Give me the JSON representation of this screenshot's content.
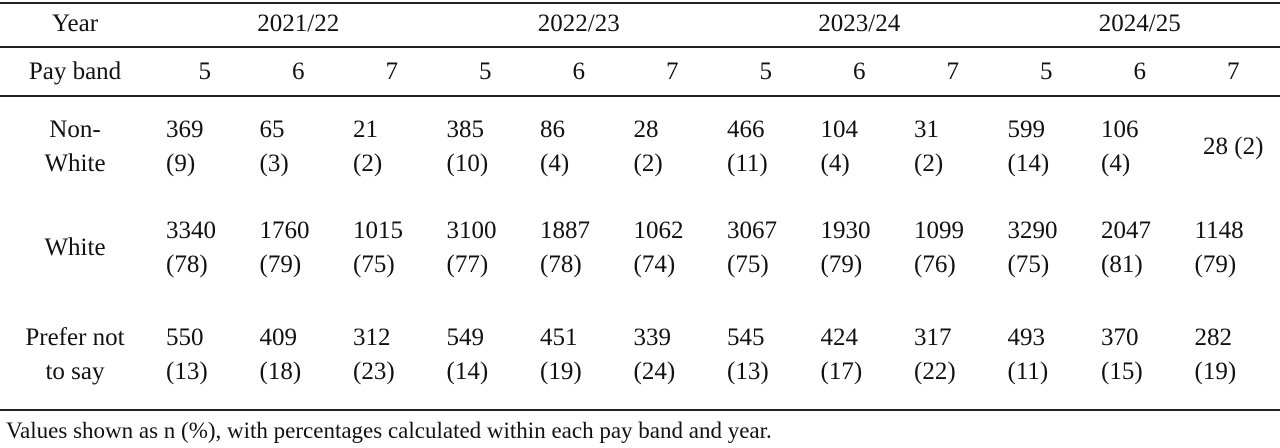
{
  "table": {
    "year_label": "Year",
    "years": [
      "2021/22",
      "2022/23",
      "2023/24",
      "2024/25"
    ],
    "band_label": "Pay band",
    "bands": [
      "5",
      "6",
      "7",
      "5",
      "6",
      "7",
      "5",
      "6",
      "7",
      "5",
      "6",
      "7"
    ],
    "rows": [
      {
        "label": [
          "Non-",
          "White"
        ],
        "cells": [
          [
            "369",
            "(9)"
          ],
          [
            "65",
            "(3)"
          ],
          [
            "21",
            "(2)"
          ],
          [
            "385",
            "(10)"
          ],
          [
            "86",
            "(4)"
          ],
          [
            "28",
            "(2)"
          ],
          [
            "466",
            "(11)"
          ],
          [
            "104",
            "(4)"
          ],
          [
            "31",
            "(2)"
          ],
          [
            "599",
            "(14)"
          ],
          [
            "106",
            "(4)"
          ],
          [
            "28 (2)"
          ]
        ]
      },
      {
        "label": [
          "White"
        ],
        "cells": [
          [
            "3340",
            "(78)"
          ],
          [
            "1760",
            "(79)"
          ],
          [
            "1015",
            "(75)"
          ],
          [
            "3100",
            "(77)"
          ],
          [
            "1887",
            "(78)"
          ],
          [
            "1062",
            "(74)"
          ],
          [
            "3067",
            "(75)"
          ],
          [
            "1930",
            "(79)"
          ],
          [
            "1099",
            "(76)"
          ],
          [
            "3290",
            "(75)"
          ],
          [
            "2047",
            "(81)"
          ],
          [
            "1148",
            "(79)"
          ]
        ]
      },
      {
        "label": [
          "Prefer not",
          "to say"
        ],
        "cells": [
          [
            "550",
            "(13)"
          ],
          [
            "409",
            "(18)"
          ],
          [
            "312",
            "(23)"
          ],
          [
            "549",
            "(14)"
          ],
          [
            "451",
            "(19)"
          ],
          [
            "339",
            "(24)"
          ],
          [
            "545",
            "(13)"
          ],
          [
            "424",
            "(17)"
          ],
          [
            "317",
            "(22)"
          ],
          [
            "493",
            "(11)"
          ],
          [
            "370",
            "(15)"
          ],
          [
            "282",
            "(19)"
          ]
        ]
      }
    ]
  },
  "footnote": "Values shown as n (%), with percentages calculated within each pay band and year."
}
